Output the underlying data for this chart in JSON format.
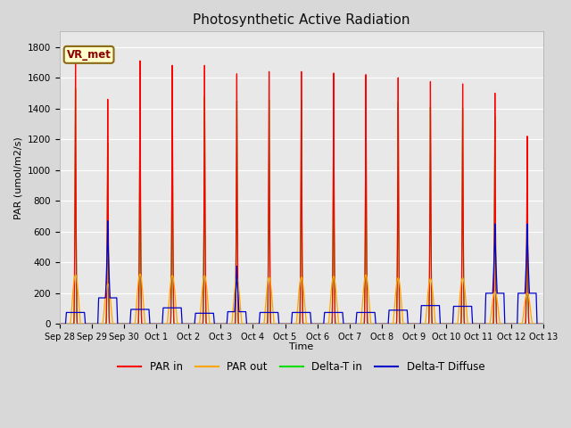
{
  "title": "Photosynthetic Active Radiation",
  "ylabel": "PAR (umol/m2/s)",
  "xlabel": "Time",
  "ylim": [
    0,
    1900
  ],
  "yticks": [
    0,
    200,
    400,
    600,
    800,
    1000,
    1200,
    1400,
    1600,
    1800
  ],
  "fig_bg_color": "#d8d8d8",
  "plot_bg_color": "#e8e8e8",
  "legend_label": "VR_met",
  "series_colors": {
    "par_in": "#ff0000",
    "par_out": "#ffa500",
    "delta_t_in": "#00dd00",
    "delta_t_diffuse": "#0000cc"
  },
  "x_tick_labels": [
    "Sep 28",
    "Sep 29",
    "Sep 30",
    "Oct 1",
    "Oct 2",
    "Oct 3",
    "Oct 4",
    "Oct 5",
    "Oct 6",
    "Oct 7",
    "Oct 8",
    "Oct 9",
    "Oct 10",
    "Oct 11",
    "Oct 12",
    "Oct 13"
  ],
  "num_days": 15,
  "points_per_day": 288,
  "par_in_peaks": [
    1700,
    1460,
    1710,
    1680,
    1680,
    1625,
    1640,
    1640,
    1630,
    1620,
    1600,
    1575,
    1560,
    1500,
    1220
  ],
  "par_out_peaks": [
    320,
    260,
    325,
    315,
    315,
    295,
    305,
    305,
    310,
    320,
    300,
    295,
    300,
    210,
    200
  ],
  "delta_t_in_peaks": [
    1530,
    1175,
    1540,
    1475,
    1475,
    1450,
    1455,
    1460,
    1460,
    1455,
    1440,
    1410,
    1400,
    1350,
    930
  ],
  "delta_t_diffuse_day": [
    90,
    670,
    105,
    120,
    80,
    375,
    90,
    90,
    85,
    90,
    105,
    150,
    135,
    650,
    650
  ],
  "delta_t_diffuse_base": [
    75,
    170,
    95,
    105,
    70,
    80,
    75,
    75,
    75,
    75,
    90,
    120,
    115,
    200,
    200
  ]
}
